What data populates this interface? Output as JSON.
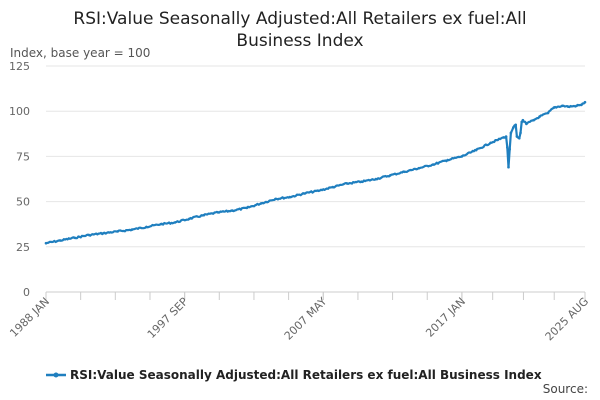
{
  "chart_data": {
    "type": "line",
    "title_line1": "RSI:Value Seasonally Adjusted:All Retailers ex fuel:All",
    "title_line2": "Business Index",
    "unit_label": "Index, base year = 100",
    "ylim": [
      0,
      125
    ],
    "yticks": [
      "0",
      "25",
      "50",
      "75",
      "100",
      "125"
    ],
    "xlim": [
      "1988-01",
      "2025-08"
    ],
    "xticks": [
      {
        "label": "1988 JAN",
        "date": "1988-01"
      },
      {
        "label": "1997 SEP",
        "date": "1997-09"
      },
      {
        "label": "2007 MAY",
        "date": "2007-05"
      },
      {
        "label": "2017 JAN",
        "date": "2017-01"
      },
      {
        "label": "2025 AUG",
        "date": "2025-08"
      }
    ],
    "grid": "horizontal",
    "legend_position": "bottom",
    "series": [
      {
        "name": "RSI:Value Seasonally Adjusted:All Retailers ex fuel:All Business Index",
        "color": "#1f7fbf",
        "points": [
          [
            "1988-01",
            27.0
          ],
          [
            "1989-01",
            28.5
          ],
          [
            "1990-01",
            30.0
          ],
          [
            "1991-01",
            31.5
          ],
          [
            "1992-01",
            32.5
          ],
          [
            "1993-01",
            33.5
          ],
          [
            "1994-01",
            34.5
          ],
          [
            "1995-01",
            36.0
          ],
          [
            "1996-01",
            37.5
          ],
          [
            "1997-01",
            38.5
          ],
          [
            "1998-01",
            40.5
          ],
          [
            "1999-01",
            42.5
          ],
          [
            "2000-01",
            44.0
          ],
          [
            "2001-01",
            45.0
          ],
          [
            "2002-01",
            46.5
          ],
          [
            "2003-01",
            49.0
          ],
          [
            "2004-01",
            51.5
          ],
          [
            "2005-01",
            52.5
          ],
          [
            "2006-01",
            54.5
          ],
          [
            "2007-01",
            56.0
          ],
          [
            "2008-01",
            58.0
          ],
          [
            "2009-01",
            60.0
          ],
          [
            "2010-01",
            61.0
          ],
          [
            "2011-01",
            62.5
          ],
          [
            "2012-01",
            64.5
          ],
          [
            "2013-01",
            66.5
          ],
          [
            "2014-01",
            68.5
          ],
          [
            "2015-01",
            70.5
          ],
          [
            "2016-01",
            73.0
          ],
          [
            "2017-01",
            75.0
          ],
          [
            "2018-01",
            78.5
          ],
          [
            "2019-01",
            82.5
          ],
          [
            "2019-12",
            85.5
          ],
          [
            "2020-02",
            86.0
          ],
          [
            "2020-03",
            80.0
          ],
          [
            "2020-04",
            69.0
          ],
          [
            "2020-05",
            79.0
          ],
          [
            "2020-06",
            88.0
          ],
          [
            "2020-08",
            91.0
          ],
          [
            "2020-10",
            92.5
          ],
          [
            "2020-11",
            86.0
          ],
          [
            "2021-01",
            85.0
          ],
          [
            "2021-02",
            88.0
          ],
          [
            "2021-03",
            94.0
          ],
          [
            "2021-04",
            95.0
          ],
          [
            "2021-07",
            93.0
          ],
          [
            "2022-01",
            95.0
          ],
          [
            "2022-06",
            97.0
          ],
          [
            "2023-01",
            99.0
          ],
          [
            "2023-06",
            102.0
          ],
          [
            "2024-01",
            103.0
          ],
          [
            "2024-06",
            102.5
          ],
          [
            "2025-01",
            103.0
          ],
          [
            "2025-05",
            103.5
          ],
          [
            "2025-08",
            105.0
          ]
        ]
      }
    ]
  },
  "source_label": "Source:"
}
